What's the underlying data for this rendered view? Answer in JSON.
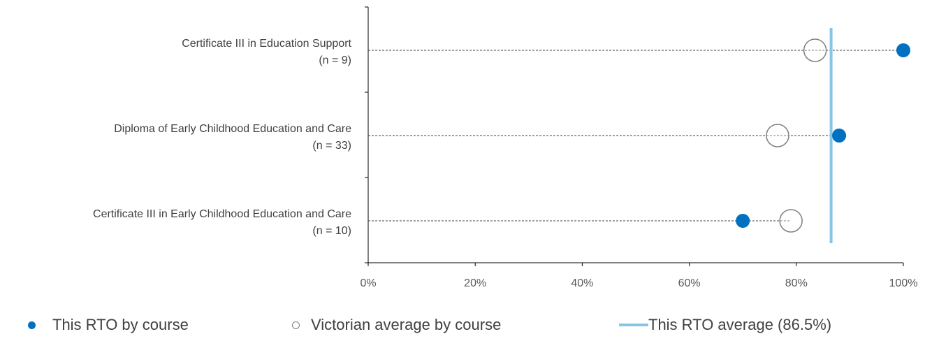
{
  "chart_data": {
    "type": "scatter",
    "categories": [
      {
        "name": "Certificate III in Education Support",
        "n": "(n = 9)"
      },
      {
        "name": "Diploma of Early Childhood Education and Care",
        "n": "(n = 33)"
      },
      {
        "name": "Certificate III in Early Childhood Education and Care",
        "n": "(n = 10)"
      }
    ],
    "series": [
      {
        "name": "This RTO by course",
        "values": [
          100,
          88,
          70
        ],
        "color": "#0070c0"
      },
      {
        "name": "Victorian average by course",
        "values": [
          83.5,
          76.5,
          79
        ],
        "color": "#7f7f7f"
      }
    ],
    "reference_line": {
      "name": "This RTO average (86.5%)",
      "value": 86.5,
      "color": "#87c5e6"
    },
    "x_ticks": [
      "0%",
      "20%",
      "40%",
      "60%",
      "80%",
      "100%"
    ],
    "xlim": [
      0,
      100
    ],
    "legend_position": "bottom",
    "grid": false
  }
}
